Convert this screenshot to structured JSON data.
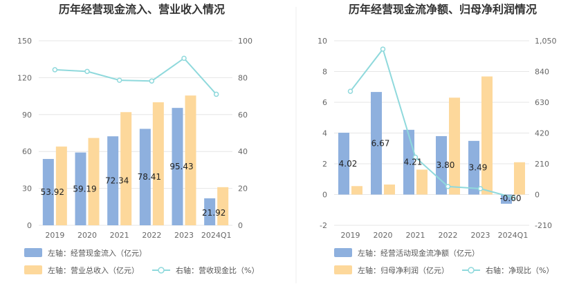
{
  "chart_data": [
    {
      "type": "bar",
      "title": "历年经营现金流入、营业收入情况",
      "categories": [
        "2019",
        "2020",
        "2021",
        "2022",
        "2023",
        "2024Q1"
      ],
      "left_axis": {
        "ticks": [
          "0",
          "30",
          "60",
          "90",
          "120",
          "150"
        ],
        "ylim": [
          0,
          150
        ]
      },
      "right_axis": {
        "ticks": [
          "0",
          "20",
          "40",
          "60",
          "80",
          "100"
        ],
        "ylim": [
          0,
          100
        ]
      },
      "series": [
        {
          "name": "左轴：经营现金流入（亿元）",
          "type": "bar",
          "axis": "left",
          "color": "#8eb0de",
          "values": [
            53.92,
            59.19,
            72.34,
            78.41,
            95.43,
            21.92
          ],
          "labels": [
            "53.92",
            "59.19",
            "72.34",
            "78.41",
            "95.43",
            "21.92"
          ]
        },
        {
          "name": "左轴：营业总收入（亿元）",
          "type": "bar",
          "axis": "left",
          "color": "#fdd89b",
          "values": [
            64,
            71,
            92,
            100,
            105.5,
            31
          ]
        },
        {
          "name": "右轴：营收现金比（%）",
          "type": "line",
          "axis": "right",
          "color": "#8fd9dc",
          "values": [
            84.3,
            83.4,
            78.6,
            78.2,
            90.5,
            71
          ]
        }
      ],
      "grid": true,
      "legend_position": "bottom"
    },
    {
      "type": "bar",
      "title": "历年经营现金流净额、归母净利润情况",
      "categories": [
        "2019",
        "2020",
        "2021",
        "2022",
        "2023",
        "2024Q1"
      ],
      "left_axis": {
        "ticks": [
          "-2",
          "0",
          "2",
          "4",
          "6",
          "8",
          "10"
        ],
        "ylim": [
          -2,
          10
        ]
      },
      "right_axis": {
        "ticks": [
          "-210",
          "0",
          "210",
          "420",
          "630",
          "840",
          "1,050"
        ],
        "ylim": [
          -210,
          1050
        ]
      },
      "series": [
        {
          "name": "左轴：经营活动现金流净额（亿元）",
          "type": "bar",
          "axis": "left",
          "color": "#8eb0de",
          "values": [
            4.02,
            6.67,
            4.21,
            3.8,
            3.49,
            -0.6
          ],
          "labels": [
            "4.02",
            "6.67",
            "4.21",
            "3.80",
            "3.49",
            "-0.60"
          ]
        },
        {
          "name": "左轴：归母净利润（亿元）",
          "type": "bar",
          "axis": "left",
          "color": "#fdd89b",
          "values": [
            0.55,
            0.65,
            1.62,
            6.3,
            7.68,
            2.1
          ]
        },
        {
          "name": "右轴：净现比（%）",
          "type": "line",
          "axis": "right",
          "color": "#8fd9dc",
          "values": [
            705,
            993,
            255,
            55,
            40,
            -20
          ]
        }
      ],
      "grid": true,
      "legend_position": "bottom"
    }
  ]
}
